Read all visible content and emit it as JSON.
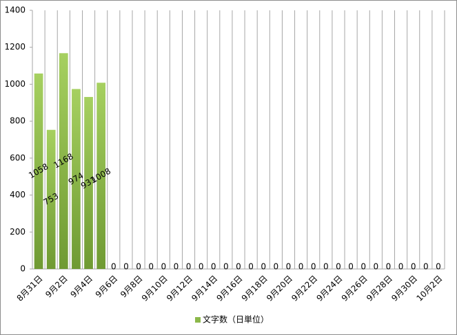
{
  "chart_data": {
    "type": "bar",
    "categories": [
      "8月31日",
      null,
      "9月2日",
      null,
      "9月4日",
      null,
      "9月6日",
      null,
      "9月8日",
      null,
      "9月10日",
      null,
      "9月12日",
      null,
      "9月14日",
      null,
      "9月16日",
      null,
      "9月18日",
      null,
      "9月20日",
      null,
      "9月22日",
      null,
      "9月24日",
      null,
      "9月26日",
      null,
      "9月28日",
      null,
      "9月30日",
      null,
      "10月2日"
    ],
    "series": [
      {
        "name": "文字数（日単位）",
        "color": "#8cb84a",
        "values": [
          1058,
          753,
          1168,
          974,
          931,
          1008,
          0,
          0,
          0,
          0,
          0,
          0,
          0,
          0,
          0,
          0,
          0,
          0,
          0,
          0,
          0,
          0,
          0,
          0,
          0,
          0,
          0,
          0,
          0,
          0,
          0,
          0,
          0
        ]
      }
    ],
    "ylim": [
      0,
      1400
    ],
    "yticks": [
      0,
      200,
      400,
      600,
      800,
      1000,
      1200,
      1400
    ],
    "legend": "bottom"
  }
}
